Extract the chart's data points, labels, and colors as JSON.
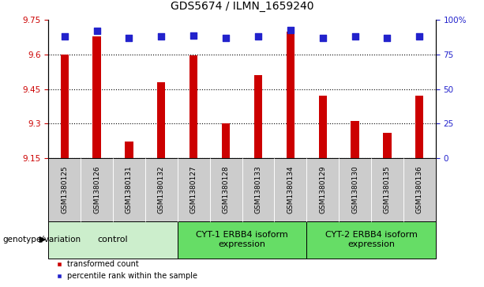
{
  "title": "GDS5674 / ILMN_1659240",
  "samples": [
    "GSM1380125",
    "GSM1380126",
    "GSM1380131",
    "GSM1380132",
    "GSM1380127",
    "GSM1380128",
    "GSM1380133",
    "GSM1380134",
    "GSM1380129",
    "GSM1380130",
    "GSM1380135",
    "GSM1380136"
  ],
  "bar_values": [
    9.6,
    9.68,
    9.22,
    9.48,
    9.595,
    9.3,
    9.51,
    9.7,
    9.42,
    9.31,
    9.26,
    9.42
  ],
  "percentile_values": [
    88,
    92,
    87,
    88,
    89,
    87,
    88,
    93,
    87,
    88,
    87,
    88
  ],
  "ylim_left": [
    9.15,
    9.75
  ],
  "ylim_right": [
    0,
    100
  ],
  "yticks_left": [
    9.15,
    9.3,
    9.45,
    9.6,
    9.75
  ],
  "ytick_labels_left": [
    "9.15",
    "9.3",
    "9.45",
    "9.6",
    "9.75"
  ],
  "yticks_right": [
    0,
    25,
    50,
    75,
    100
  ],
  "ytick_labels_right": [
    "0",
    "25",
    "50",
    "75",
    "100%"
  ],
  "bar_color": "#cc0000",
  "dot_color": "#2222cc",
  "bar_width": 0.25,
  "dot_size": 28,
  "groups": [
    {
      "label": "control",
      "start": 0,
      "end": 4,
      "color": "#cceecc"
    },
    {
      "label": "CYT-1 ERBB4 isoform\nexpression",
      "start": 4,
      "end": 8,
      "color": "#66dd66"
    },
    {
      "label": "CYT-2 ERBB4 isoform\nexpression",
      "start": 8,
      "end": 12,
      "color": "#66dd66"
    }
  ],
  "grid_color": "#000000",
  "tick_color_left": "#cc0000",
  "tick_color_right": "#2222cc",
  "bg_color_plot": "#ffffff",
  "xtick_bg_color": "#cccccc",
  "legend_items": [
    {
      "label": "transformed count",
      "color": "#cc0000"
    },
    {
      "label": "percentile rank within the sample",
      "color": "#2222cc"
    }
  ],
  "genotype_label": "genotype/variation",
  "title_fontsize": 10,
  "tick_fontsize": 7.5,
  "xtick_fontsize": 6.5,
  "group_fontsize": 8,
  "legend_fontsize": 7
}
